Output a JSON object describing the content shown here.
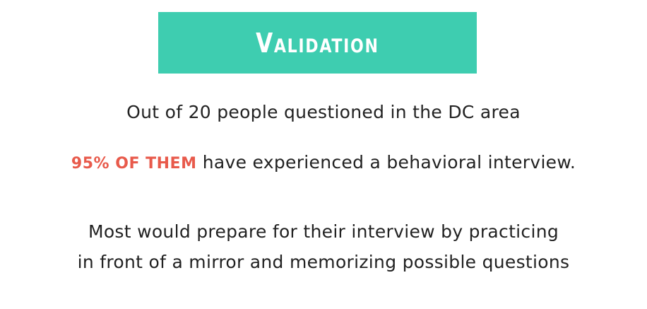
{
  "title": "Validation",
  "lines": {
    "line1": "Out of 20 people questioned in the DC area",
    "line2_highlight": "95% OF THEM",
    "line2_rest": "have experienced a behavioral interview.",
    "line3": "Most would prepare for their interview by practicing",
    "line4": "in front of a mirror and memorizing possible questions"
  },
  "colors": {
    "banner": "#3ecdb0",
    "highlight": "#e85a4b",
    "text": "#222222"
  }
}
